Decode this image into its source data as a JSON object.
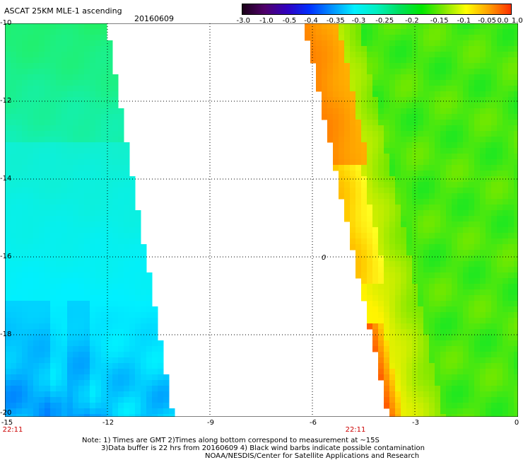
{
  "header": {
    "title": "ASCAT 25KM MLE-1 ascending",
    "date": "20160609"
  },
  "colorbar": {
    "tick_labels": [
      "-3.0",
      "-1.0",
      "-0.5",
      "-0.4",
      "-0.35",
      "-0.3",
      "-0.25",
      "-0.2",
      "-0.15",
      "-0.1",
      "-0.05",
      "0.0",
      "1.0"
    ],
    "stops": [
      "#1a0018",
      "#50006a",
      "#3000c0",
      "#0030ff",
      "#0090ff",
      "#00f0ff",
      "#00f0c0",
      "#00e060",
      "#00e800",
      "#80e800",
      "#ffff00",
      "#ffa000",
      "#ff3000"
    ]
  },
  "map": {
    "y_ticks": [
      "-10",
      "-12",
      "-14",
      "-16",
      "-18",
      "-20"
    ],
    "x_ticks": [
      "-15",
      "-12",
      "-9",
      "-6",
      "-3",
      "0"
    ],
    "time_labels": [
      "22:11",
      "22:11"
    ],
    "contour_label": "0",
    "lon_range": [
      -15,
      0
    ],
    "lat_range": [
      -20,
      -10
    ],
    "grid": true
  },
  "footer": {
    "line1": "Note: 1) Times are GMT 2)Times along bottom correspond to measurement at ~15S",
    "line2": "3)Data buffer is 22 hrs from 20160609 4) Black wind barbs indicate possible contamination",
    "line3": "NOAA/NESDIS/Center for Satellite Applications and Research"
  }
}
